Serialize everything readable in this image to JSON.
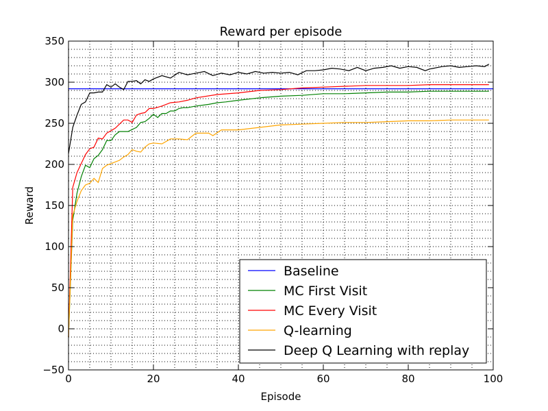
{
  "chart_data": {
    "type": "line",
    "title": "Reward per episode",
    "xlabel": "Episode",
    "ylabel": "Reward",
    "xlim": [
      0,
      100
    ],
    "ylim": [
      -50,
      350
    ],
    "xticks": [
      0,
      20,
      40,
      60,
      80,
      100
    ],
    "yticks": [
      -50,
      0,
      50,
      100,
      150,
      200,
      250,
      300,
      350
    ],
    "grid": "dotted, major and minor",
    "legend_position": "lower-right",
    "series": [
      {
        "name": "Baseline",
        "color": "#0000ff",
        "x": [
          0,
          100
        ],
        "y": [
          292,
          292
        ]
      },
      {
        "name": "MC First Visit",
        "color": "#008000",
        "x": [
          0,
          1,
          2,
          3,
          4,
          5,
          6,
          7,
          8,
          9,
          10,
          11,
          12,
          14,
          16,
          17,
          18,
          19,
          20,
          21,
          22,
          23,
          24,
          25,
          26,
          27,
          28,
          30,
          33,
          35,
          37,
          40,
          45,
          50,
          55,
          60,
          65,
          70,
          75,
          80,
          85,
          90,
          95,
          99
        ],
        "y": [
          -10,
          132,
          165,
          185,
          199,
          196,
          207,
          211,
          218,
          229,
          229,
          236,
          240,
          240,
          245,
          251,
          252,
          256,
          261,
          257,
          262,
          262,
          265,
          265,
          268,
          269,
          269,
          271,
          273,
          275,
          276,
          278,
          281,
          283,
          284,
          286,
          286,
          287,
          288,
          288,
          289,
          289,
          289,
          289
        ]
      },
      {
        "name": "MC Every Visit",
        "color": "#ff0000",
        "x": [
          0,
          1,
          2,
          3,
          4,
          5,
          6,
          7,
          8,
          9,
          10,
          11,
          12,
          13,
          14,
          15,
          16,
          17,
          18,
          19,
          20,
          22,
          24,
          26,
          28,
          30,
          35,
          40,
          45,
          50,
          55,
          60,
          65,
          70,
          75,
          80,
          85,
          90,
          95,
          99
        ],
        "y": [
          -10,
          172,
          190,
          201,
          212,
          219,
          221,
          232,
          231,
          238,
          241,
          244,
          249,
          254,
          254,
          251,
          260,
          262,
          263,
          268,
          268,
          271,
          275,
          276,
          278,
          281,
          285,
          287,
          290,
          291,
          293,
          294,
          295,
          296,
          296,
          296,
          297,
          297,
          297,
          297
        ]
      },
      {
        "name": "Q-learning",
        "color": "#ffa500",
        "x": [
          0,
          1,
          2,
          3,
          4,
          5,
          6,
          7,
          8,
          9,
          10,
          11,
          12,
          13,
          14,
          15,
          16,
          17,
          18,
          19,
          20,
          22,
          24,
          26,
          28,
          30,
          33,
          34,
          36,
          40,
          45,
          50,
          55,
          60,
          65,
          70,
          75,
          80,
          85,
          90,
          95,
          99
        ],
        "y": [
          -10,
          138,
          155,
          168,
          175,
          177,
          183,
          178,
          195,
          199,
          201,
          203,
          205,
          209,
          212,
          218,
          216,
          215,
          221,
          225,
          226,
          225,
          231,
          231,
          230,
          238,
          238,
          235,
          242,
          242,
          245,
          248,
          249,
          250,
          251,
          251,
          252,
          253,
          253,
          254,
          254,
          254
        ]
      },
      {
        "name": "Deep Q Learning with replay",
        "color": "#000000",
        "x": [
          0,
          1,
          2,
          3,
          4,
          5,
          6,
          7,
          8,
          9,
          10,
          11,
          12,
          13,
          14,
          15,
          16,
          17,
          18,
          19,
          20,
          22,
          24,
          26,
          28,
          30,
          32,
          34,
          36,
          38,
          40,
          42,
          44,
          46,
          48,
          50,
          52,
          54,
          56,
          58,
          60,
          62,
          64,
          66,
          68,
          70,
          72,
          74,
          76,
          78,
          80,
          82,
          84,
          85,
          86,
          88,
          90,
          92,
          94,
          96,
          98,
          99
        ],
        "y": [
          213,
          245,
          260,
          273,
          276,
          287,
          287,
          288,
          288,
          297,
          294,
          298,
          294,
          291,
          301,
          301,
          302,
          298,
          303,
          301,
          304,
          308,
          305,
          312,
          309,
          311,
          313,
          308,
          311,
          309,
          312,
          310,
          313,
          311,
          312,
          311,
          312,
          309,
          314,
          314,
          315,
          317,
          316,
          314,
          318,
          314,
          317,
          318,
          320,
          317,
          319,
          318,
          314,
          316,
          317,
          319,
          320,
          318,
          319,
          320,
          319,
          322
        ]
      }
    ]
  }
}
